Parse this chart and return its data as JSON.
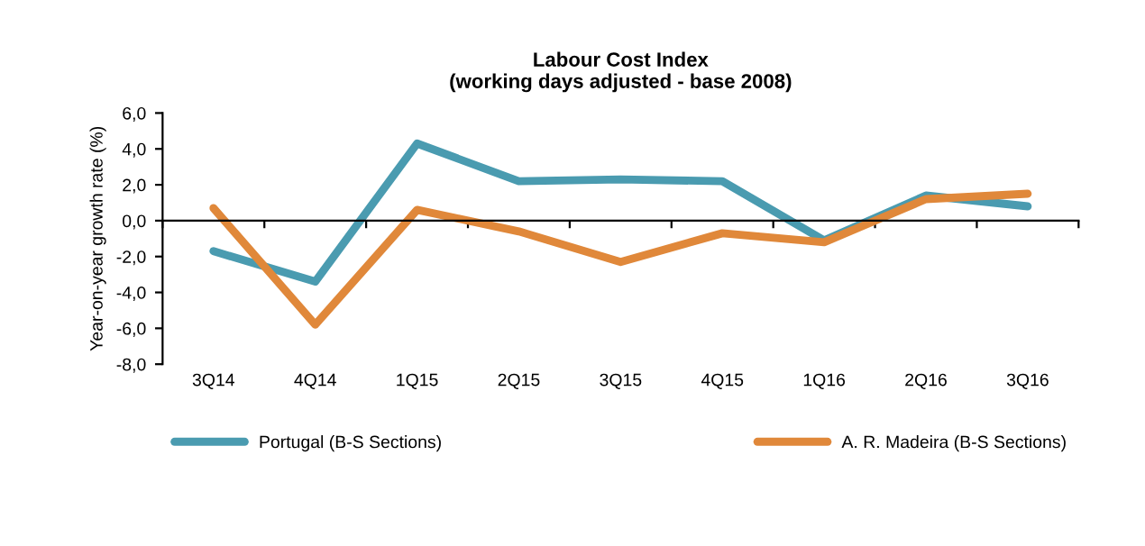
{
  "chart_data": {
    "type": "line",
    "title": "Labour Cost Index\n(working days adjusted - base 2008)",
    "ylabel": "Year-on-year growth rate (%)",
    "categories": [
      "3Q14",
      "4Q14",
      "1Q15",
      "2Q15",
      "3Q15",
      "4Q15",
      "1Q16",
      "2Q16",
      "3Q16"
    ],
    "series": [
      {
        "name": "Portugal (B-S Sections)",
        "color": "#4a9bb0",
        "values": [
          -1.7,
          -3.4,
          4.3,
          2.2,
          2.3,
          2.2,
          -1.1,
          1.4,
          0.8
        ]
      },
      {
        "name": "A. R. Madeira (B-S Sections)",
        "color": "#e0883a",
        "values": [
          0.7,
          -5.8,
          0.6,
          -0.6,
          -2.3,
          -0.7,
          -1.2,
          1.2,
          1.5
        ]
      }
    ],
    "ylim": [
      -8,
      6
    ],
    "yticks": [
      {
        "value": -8,
        "label": "-8,0"
      },
      {
        "value": -6,
        "label": "-6,0"
      },
      {
        "value": -4,
        "label": "-4,0"
      },
      {
        "value": -2,
        "label": "-2,0"
      },
      {
        "value": 0,
        "label": "0,0"
      },
      {
        "value": 2,
        "label": "2,0"
      },
      {
        "value": 4,
        "label": "4,0"
      },
      {
        "value": 6,
        "label": "6,0"
      }
    ],
    "legend": "bottom",
    "marker": "none",
    "line_style": "solid"
  }
}
